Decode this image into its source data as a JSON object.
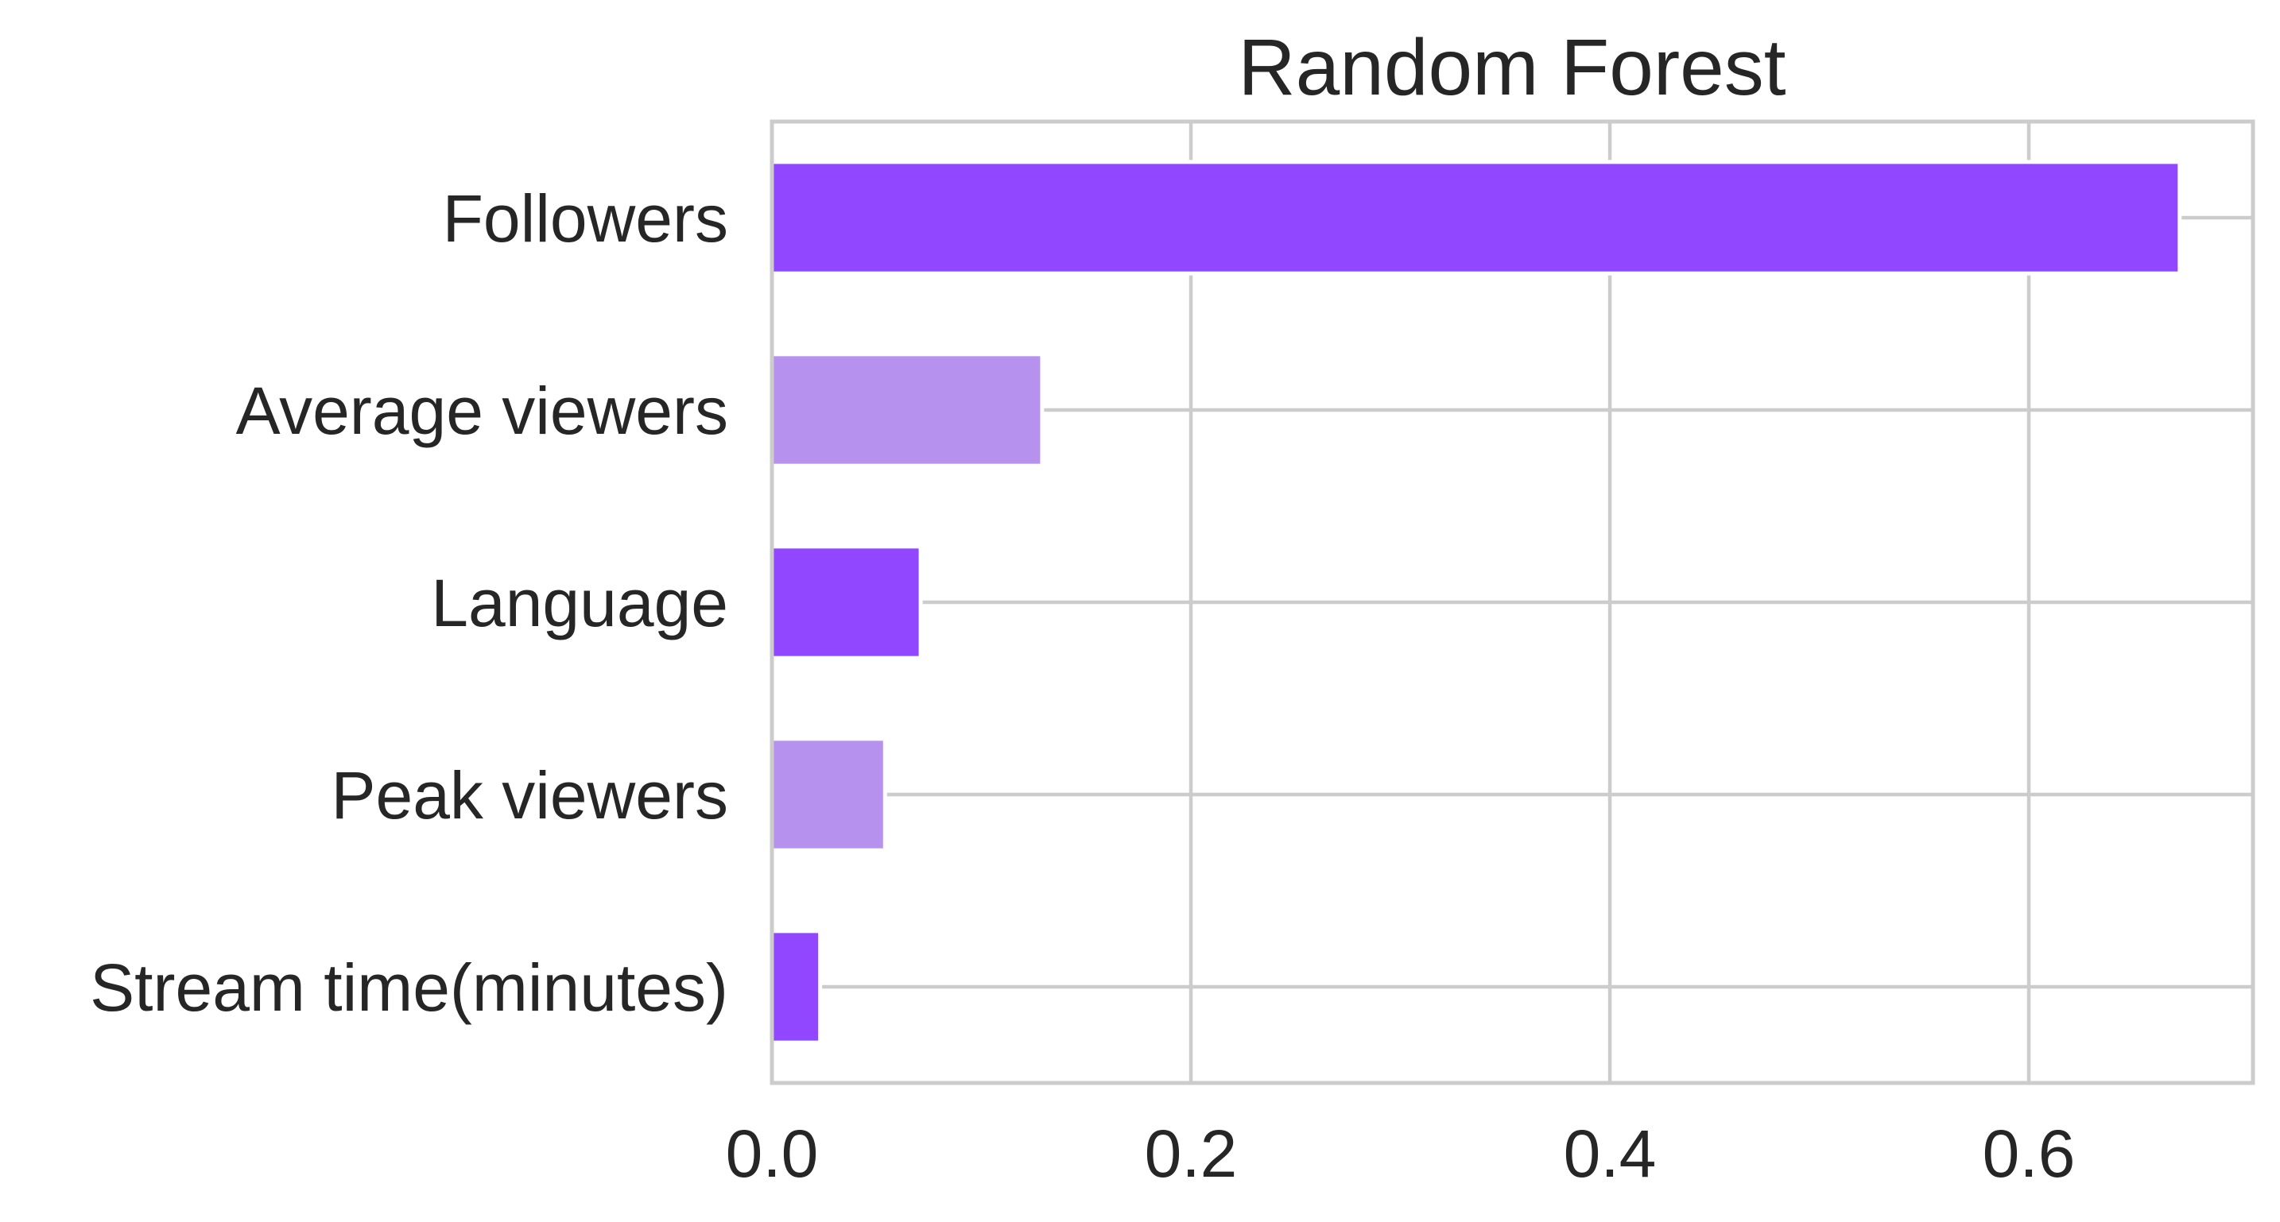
{
  "chart_data": {
    "type": "bar",
    "orientation": "horizontal",
    "title": "Random Forest",
    "xlabel": "",
    "ylabel": "",
    "categories": [
      "Followers",
      "Average viewers",
      "Language",
      "Peak viewers",
      "Stream time(minutes)"
    ],
    "values": [
      0.672,
      0.129,
      0.071,
      0.054,
      0.023
    ],
    "bar_colors": [
      "#9146ff",
      "#b691ee",
      "#9146ff",
      "#b691ee",
      "#9146ff"
    ],
    "xlim": [
      0.0,
      0.707
    ],
    "xticks": [
      0.0,
      0.2,
      0.4,
      0.6
    ],
    "xtick_labels": [
      "0.0",
      "0.2",
      "0.4",
      "0.6"
    ],
    "grid": true,
    "legend": false
  }
}
